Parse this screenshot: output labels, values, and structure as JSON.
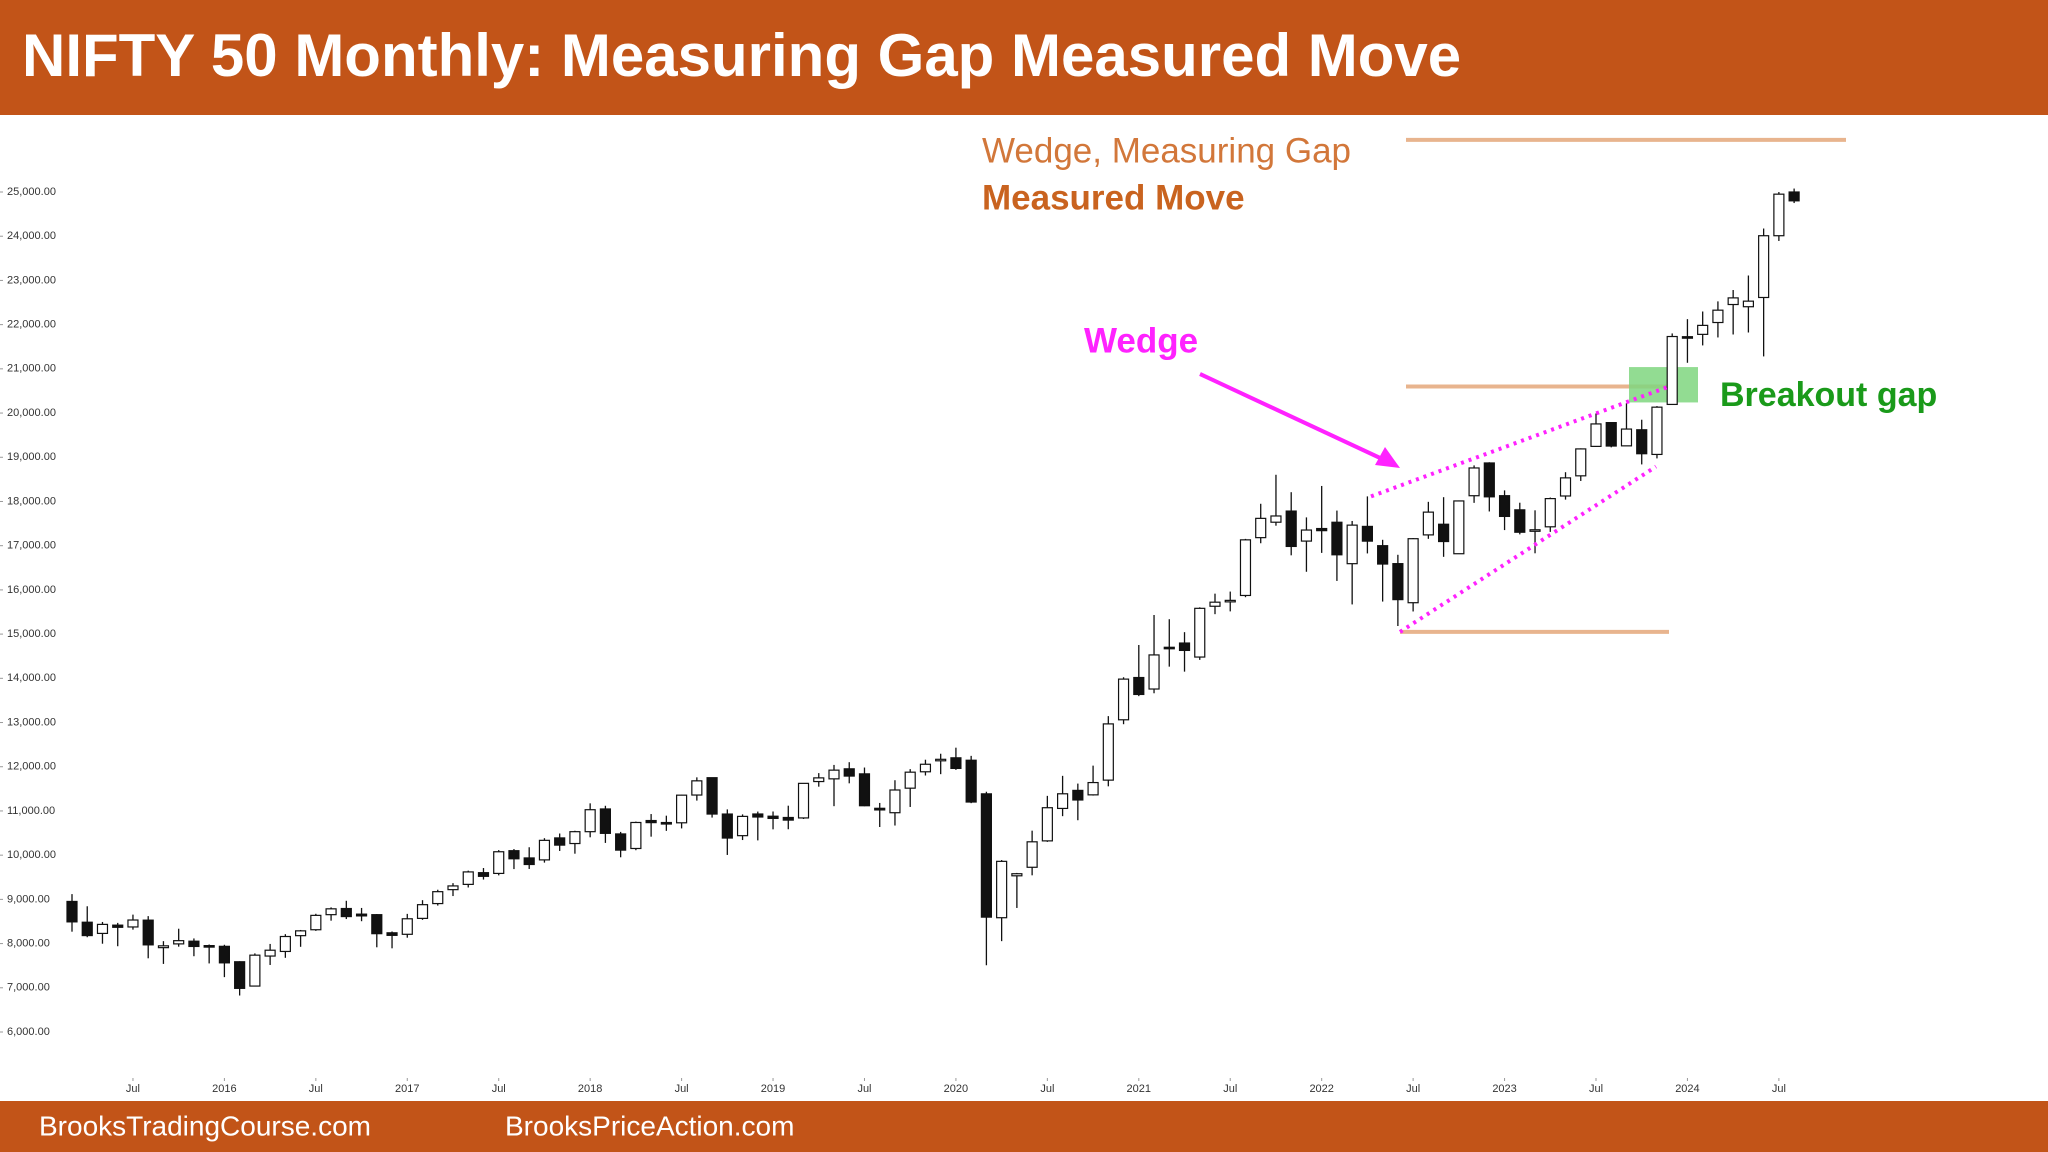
{
  "chart_data": {
    "type": "candlestick",
    "title": "NIFTY 50 Monthly: Measuring Gap Measured Move",
    "footer_left": "BrooksTradingCourse.com",
    "footer_right": "BrooksPriceAction.com",
    "annotations": {
      "target_line1": "Wedge, Measuring Gap",
      "target_line2": "Measured Move",
      "wedge": "Wedge",
      "gap": "Breakout gap"
    },
    "x": [
      "2015-03",
      "2015-04",
      "2015-05",
      "2015-06",
      "2015-07",
      "2015-08",
      "2015-09",
      "2015-10",
      "2015-11",
      "2015-12",
      "2016-01",
      "2016-02",
      "2016-03",
      "2016-04",
      "2016-05",
      "2016-06",
      "2016-07",
      "2016-08",
      "2016-09",
      "2016-10",
      "2016-11",
      "2016-12",
      "2017-01",
      "2017-02",
      "2017-03",
      "2017-04",
      "2017-05",
      "2017-06",
      "2017-07",
      "2017-08",
      "2017-09",
      "2017-10",
      "2017-11",
      "2017-12",
      "2018-01",
      "2018-02",
      "2018-03",
      "2018-04",
      "2018-05",
      "2018-06",
      "2018-07",
      "2018-08",
      "2018-09",
      "2018-10",
      "2018-11",
      "2018-12",
      "2019-01",
      "2019-02",
      "2019-03",
      "2019-04",
      "2019-05",
      "2019-06",
      "2019-07",
      "2019-08",
      "2019-09",
      "2019-10",
      "2019-11",
      "2019-12",
      "2020-01",
      "2020-02",
      "2020-03",
      "2020-04",
      "2020-05",
      "2020-06",
      "2020-07",
      "2020-08",
      "2020-09",
      "2020-10",
      "2020-11",
      "2020-12",
      "2021-01",
      "2021-02",
      "2021-03",
      "2021-04",
      "2021-05",
      "2021-06",
      "2021-07",
      "2021-08",
      "2021-09",
      "2021-10",
      "2021-11",
      "2021-12",
      "2022-01",
      "2022-02",
      "2022-03",
      "2022-04",
      "2022-05",
      "2022-06",
      "2022-07",
      "2022-08",
      "2022-09",
      "2022-10",
      "2022-11",
      "2022-12",
      "2023-01",
      "2023-02",
      "2023-03",
      "2023-04",
      "2023-05",
      "2023-06",
      "2023-07",
      "2023-08",
      "2023-09",
      "2023-10",
      "2023-11",
      "2023-12",
      "2024-01",
      "2024-02",
      "2024-03",
      "2024-04",
      "2024-05",
      "2024-06",
      "2024-07",
      "2024-08"
    ],
    "open": [
      8953,
      8483,
      8230,
      8417,
      8376,
      8530,
      7908,
      7993,
      8054,
      7954,
      7938,
      7589,
      7039,
      7718,
      7822,
      8179,
      8313,
      8654,
      8793,
      8666,
      8654,
      8244,
      8210,
      8570,
      8905,
      9220,
      9339,
      9604,
      9587,
      10101,
      9937,
      9893,
      10390,
      10263,
      10531,
      11045,
      10480,
      10151,
      10783,
      10738,
      10732,
      11360,
      11752,
      10930,
      10441,
      10931,
      10881,
      10852,
      10842,
      11665,
      11726,
      11953,
      11839,
      11060,
      10960,
      11515,
      11886,
      12137,
      12202,
      12147,
      11387,
      8585,
      9533,
      9726,
      10323,
      11057,
      11465,
      11364,
      11697,
      13062,
      14018,
      13758,
      14702,
      14798,
      14481,
      15630,
      15755,
      15874,
      17182,
      17531,
      17783,
      17104,
      17388,
      17530,
      16593,
      17436,
      17000,
      16594,
      15710,
      17244,
      17485,
      16818,
      18130,
      18871,
      18131,
      17811,
      17360,
      17427,
      18124,
      18580,
      19246,
      19784,
      19258,
      19622,
      19064,
      20195,
      21727,
      21780,
      22048,
      22455,
      22405,
      22614,
      24011,
      25000
    ],
    "high": [
      9119,
      8844,
      8489,
      8468,
      8655,
      8621,
      8055,
      8336,
      8116,
      7979,
      7973,
      7600,
      7778,
      7992,
      8213,
      8308,
      8674,
      8819,
      8968,
      8806,
      8669,
      8274,
      8672,
      8982,
      9218,
      9367,
      9650,
      9709,
      10115,
      10138,
      10179,
      10384,
      10490,
      10552,
      11172,
      11117,
      10526,
      10759,
      10930,
      10893,
      11366,
      11760,
      11752,
      11035,
      10922,
      10986,
      10988,
      11119,
      11630,
      11856,
      12041,
      12103,
      11982,
      11181,
      11695,
      11946,
      12159,
      12294,
      12431,
      12246,
      11434,
      9889,
      9598,
      10554,
      11341,
      11794,
      11619,
      12025,
      13145,
      14024,
      14754,
      15432,
      15337,
      15044,
      15606,
      15915,
      15962,
      17154,
      17948,
      18604,
      18210,
      17640,
      18351,
      17794,
      17559,
      18115,
      17133,
      16794,
      17172,
      17992,
      18097,
      18023,
      18816,
      18887,
      18251,
      17972,
      17800,
      18089,
      18662,
      19201,
      19991,
      19796,
      20222,
      19849,
      20158,
      21801,
      22124,
      22297,
      22526,
      22783,
      23111,
      24174,
      24999,
      25078
    ],
    "low": [
      8269,
      8144,
      7997,
      7940,
      8315,
      7667,
      7540,
      7930,
      7714,
      7551,
      7241,
      6825,
      7035,
      7516,
      7678,
      7927,
      8287,
      8518,
      8555,
      8506,
      7916,
      7893,
      8133,
      8537,
      8860,
      9075,
      9269,
      9448,
      9543,
      9685,
      9688,
      9831,
      10095,
      10033,
      10404,
      10277,
      9952,
      10112,
      10418,
      10550,
      10605,
      11234,
      10850,
      10005,
      10342,
      10334,
      10584,
      10586,
      10818,
      11549,
      11108,
      11625,
      11107,
      10637,
      10670,
      11090,
      11802,
      11832,
      11929,
      11176,
      7511,
      8055,
      8806,
      9544,
      10300,
      10882,
      10790,
      11347,
      11557,
      12962,
      13597,
      13662,
      14264,
      14151,
      14417,
      15451,
      15514,
      15835,
      17055,
      17452,
      16782,
      16410,
      16837,
      16203,
      15671,
      16825,
      15736,
      15183,
      15512,
      17155,
      16748,
      16855,
      17969,
      17774,
      17353,
      17256,
      16828,
      17312,
      18042,
      18464,
      19234,
      19224,
      19255,
      18838,
      18974,
      20183,
      21137,
      21530,
      21710,
      21777,
      21822,
      21281,
      23893,
      24750
    ],
    "close": [
      8491,
      8181,
      8434,
      8368,
      8533,
      7971,
      7949,
      8066,
      7935,
      7946,
      7564,
      6987,
      7738,
      7850,
      8160,
      8288,
      8638,
      8786,
      8611,
      8626,
      8224,
      8186,
      8561,
      8880,
      9174,
      9304,
      9621,
      9521,
      10077,
      9918,
      9789,
      10335,
      10227,
      10531,
      11028,
      10493,
      10114,
      10739,
      10736,
      10714,
      11357,
      11681,
      10930,
      10387,
      10877,
      10863,
      10831,
      10793,
      11624,
      11748,
      11923,
      11789,
      11118,
      11023,
      11474,
      11877,
      12056,
      12168,
      11962,
      11202,
      8598,
      9860,
      9580,
      10302,
      11073,
      11388,
      11248,
      11642,
      12969,
      13982,
      13635,
      14529,
      14691,
      14631,
      15583,
      15722,
      15763,
      17132,
      17618,
      17672,
      16983,
      17354,
      17340,
      16794,
      17465,
      17103,
      16585,
      15780,
      17158,
      17759,
      17094,
      18012,
      18758,
      18105,
      17662,
      17304,
      17360,
      18065,
      18534,
      19189,
      19754,
      19254,
      19638,
      19080,
      20133,
      21731,
      21726,
      21983,
      22327,
      22605,
      22531,
      24011,
      24951,
      24800
    ],
    "up_color": "#ffffff",
    "down_color": "#111111",
    "ylim": [
      5500,
      26500
    ],
    "yticks": [
      {
        "value": 6000,
        "label": "6,000.00"
      },
      {
        "value": 7000,
        "label": "7,000.00"
      },
      {
        "value": 8000,
        "label": "8,000.00"
      },
      {
        "value": 9000,
        "label": "9,000.00"
      },
      {
        "value": 10000,
        "label": "10,000.00"
      },
      {
        "value": 11000,
        "label": "11,000.00"
      },
      {
        "value": 12000,
        "label": "12,000.00"
      },
      {
        "value": 13000,
        "label": "13,000.00"
      },
      {
        "value": 14000,
        "label": "14,000.00"
      },
      {
        "value": 15000,
        "label": "15,000.00"
      },
      {
        "value": 16000,
        "label": "16,000.00"
      },
      {
        "value": 17000,
        "label": "17,000.00"
      },
      {
        "value": 18000,
        "label": "18,000.00"
      },
      {
        "value": 19000,
        "label": "19,000.00"
      },
      {
        "value": 20000,
        "label": "20,000.00"
      },
      {
        "value": 21000,
        "label": "21,000.00"
      },
      {
        "value": 22000,
        "label": "22,000.00"
      },
      {
        "value": 23000,
        "label": "23,000.00"
      },
      {
        "value": 24000,
        "label": "24,000.00"
      },
      {
        "value": 25000,
        "label": "25,000.00"
      }
    ],
    "xticks": [
      {
        "value": "2015-07",
        "label": "Jul"
      },
      {
        "value": "2016-01",
        "label": "2016"
      },
      {
        "value": "2016-07",
        "label": "Jul"
      },
      {
        "value": "2017-01",
        "label": "2017"
      },
      {
        "value": "2017-07",
        "label": "Jul"
      },
      {
        "value": "2018-01",
        "label": "2018"
      },
      {
        "value": "2018-07",
        "label": "Jul"
      },
      {
        "value": "2019-01",
        "label": "2019"
      },
      {
        "value": "2019-07",
        "label": "Jul"
      },
      {
        "value": "2020-01",
        "label": "2020"
      },
      {
        "value": "2020-07",
        "label": "Jul"
      },
      {
        "value": "2021-01",
        "label": "2021"
      },
      {
        "value": "2021-07",
        "label": "Jul"
      },
      {
        "value": "2022-01",
        "label": "2022"
      },
      {
        "value": "2022-07",
        "label": "Jul"
      },
      {
        "value": "2023-01",
        "label": "2023"
      },
      {
        "value": "2023-07",
        "label": "Jul"
      },
      {
        "value": "2024-01",
        "label": "2024"
      },
      {
        "value": "2024-07",
        "label": "Jul"
      }
    ],
    "levels": [
      26180,
      20600,
      15050
    ],
    "level_color": "#e8b48e",
    "wedge_upper": [
      18115,
      20600
    ],
    "wedge_lower": [
      15050,
      18790
    ],
    "wedge_color": "#ff22ff",
    "breakout_gap": [
      20240,
      21040
    ],
    "gap_color": "#7fd67f"
  }
}
